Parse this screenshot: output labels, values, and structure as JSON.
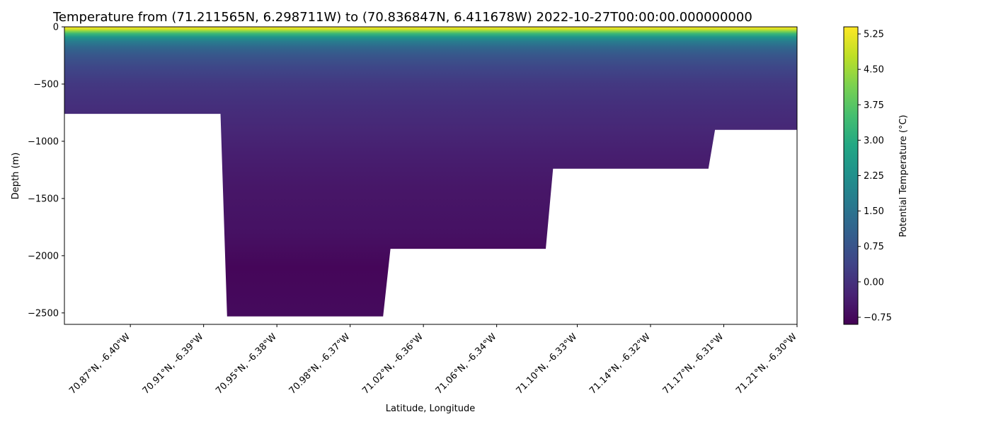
{
  "chart_data": {
    "type": "heatmap",
    "title": "Temperature from (71.211565N, 6.298711W) to (70.836847N, 6.411678W) 2022-10-27T00:00:00.000000000",
    "xlabel": "Latitude, Longitude",
    "ylabel": "Depth (m)",
    "x_tick_labels": [
      "70.87°N, -6.40°W",
      "70.91°N, -6.39°W",
      "70.95°N, -6.38°W",
      "70.98°N, -6.37°W",
      "71.02°N, -6.36°W",
      "71.06°N, -6.34°W",
      "71.10°N, -6.33°W",
      "71.14°N, -6.32°W",
      "71.17°N, -6.31°W",
      "71.21°N, -6.30°W"
    ],
    "x_tick_positions": [
      0.09,
      0.19,
      0.29,
      0.39,
      0.49,
      0.59,
      0.7,
      0.8,
      0.9,
      1.0
    ],
    "y_ticks": [
      0,
      -500,
      -1000,
      -1500,
      -2000,
      -2500
    ],
    "y_tick_labels": [
      "0",
      "−500",
      "−1000",
      "−1500",
      "−2000",
      "−2500"
    ],
    "ylim": [
      -2600,
      0
    ],
    "colorbar": {
      "label": "Potential Temperature (°C)",
      "ticks": [
        5.25,
        4.5,
        3.75,
        3.0,
        2.25,
        1.5,
        0.75,
        0.0,
        -0.75
      ],
      "tick_labels": [
        "5.25",
        "4.50",
        "3.75",
        "3.00",
        "2.25",
        "1.50",
        "0.75",
        "0.00",
        "−0.75"
      ],
      "range": [
        -0.9,
        5.4
      ],
      "colormap": "viridis"
    },
    "section_columns": [
      {
        "x_start": 0.0,
        "x_end": 0.213,
        "bottom_depth": -760
      },
      {
        "x_start": 0.222,
        "x_end": 0.435,
        "bottom_depth": -2530
      },
      {
        "x_start": 0.445,
        "x_end": 0.657,
        "bottom_depth": -1940
      },
      {
        "x_start": 0.667,
        "x_end": 0.879,
        "bottom_depth": -1240
      },
      {
        "x_start": 0.888,
        "x_end": 1.0,
        "bottom_depth": -900
      }
    ],
    "temperature_profile": [
      {
        "depth": 0,
        "temp": 5.4
      },
      {
        "depth": -20,
        "temp": 5.0
      },
      {
        "depth": -40,
        "temp": 4.2
      },
      {
        "depth": -60,
        "temp": 3.3
      },
      {
        "depth": -90,
        "temp": 2.4
      },
      {
        "depth": -130,
        "temp": 1.7
      },
      {
        "depth": -180,
        "temp": 1.2
      },
      {
        "depth": -250,
        "temp": 0.8
      },
      {
        "depth": -350,
        "temp": 0.45
      },
      {
        "depth": -500,
        "temp": 0.15
      },
      {
        "depth": -700,
        "temp": -0.05
      },
      {
        "depth": -900,
        "temp": -0.2
      },
      {
        "depth": -1100,
        "temp": -0.35
      },
      {
        "depth": -1400,
        "temp": -0.5
      },
      {
        "depth": -1800,
        "temp": -0.6
      },
      {
        "depth": -2100,
        "temp": -0.8
      },
      {
        "depth": -2400,
        "temp": -0.75
      },
      {
        "depth": -2600,
        "temp": -0.7
      }
    ]
  }
}
